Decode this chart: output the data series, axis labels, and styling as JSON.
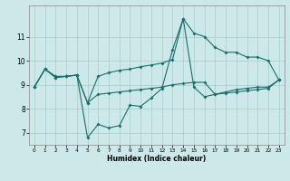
{
  "xlabel": "Humidex (Indice chaleur)",
  "x_ticks": [
    0,
    1,
    2,
    3,
    4,
    5,
    6,
    7,
    8,
    9,
    10,
    11,
    12,
    13,
    14,
    15,
    16,
    17,
    18,
    19,
    20,
    21,
    22,
    23
  ],
  "ylim": [
    6.5,
    12.3
  ],
  "yticks": [
    7,
    8,
    9,
    10,
    11
  ],
  "bg_color": "#cce8e8",
  "grid_color": "#aacccc",
  "line_color": "#1a6e6e",
  "marker": "D",
  "markersize": 2.0,
  "linewidth": 0.8,
  "xA": [
    0,
    1,
    2,
    3,
    4,
    5,
    6,
    7,
    8,
    9,
    10,
    11,
    12,
    13,
    14,
    15,
    16,
    17,
    18,
    19,
    20,
    21,
    22,
    23
  ],
  "yA": [
    8.9,
    9.65,
    9.3,
    9.35,
    9.4,
    6.8,
    7.35,
    7.2,
    7.3,
    8.15,
    8.1,
    8.45,
    8.85,
    10.45,
    11.75,
    8.9,
    8.5,
    8.6,
    8.7,
    8.8,
    8.85,
    8.9,
    8.9,
    9.2
  ],
  "xB": [
    0,
    1,
    2,
    3,
    4,
    5,
    6,
    7,
    8,
    9,
    10,
    11,
    12,
    13,
    14,
    15,
    16,
    17,
    18,
    19,
    20,
    21,
    22,
    23
  ],
  "yB": [
    8.9,
    9.65,
    9.35,
    9.35,
    9.4,
    8.25,
    9.35,
    9.5,
    9.6,
    9.65,
    9.75,
    9.82,
    9.9,
    10.05,
    11.75,
    11.15,
    11.0,
    10.55,
    10.35,
    10.35,
    10.15,
    10.15,
    10.0,
    9.2
  ],
  "xC": [
    0,
    1,
    2,
    3,
    4,
    5,
    6,
    7,
    8,
    9,
    10,
    11,
    12,
    13,
    14,
    15,
    16,
    17,
    18,
    19,
    20,
    21,
    22,
    23
  ],
  "yC": [
    8.9,
    9.65,
    9.3,
    9.35,
    9.4,
    8.25,
    8.6,
    8.65,
    8.7,
    8.75,
    8.8,
    8.85,
    8.9,
    9.0,
    9.05,
    9.1,
    9.1,
    8.6,
    8.65,
    8.7,
    8.75,
    8.8,
    8.85,
    9.2
  ]
}
